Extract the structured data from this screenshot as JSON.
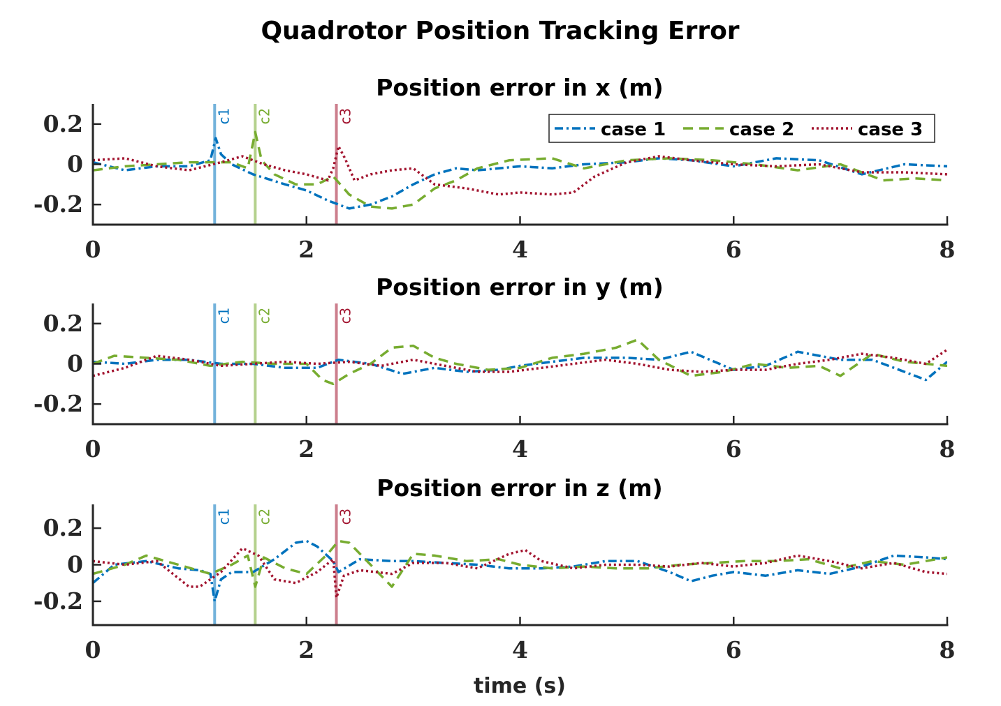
{
  "colors": {
    "case1": "#0072BD",
    "case2": "#77AC30",
    "case3": "#A2142F",
    "axis": "#262626"
  },
  "chart_data": {
    "type": "line",
    "title": "Quadrotor Position Tracking Error",
    "xlabel": "time (s)",
    "xlim": [
      0,
      8
    ],
    "xticks": [
      "0",
      "2",
      "4",
      "6",
      "8"
    ],
    "legend": {
      "placement": "top-right",
      "entries": [
        "case 1",
        "case 2",
        "case 3"
      ]
    },
    "markers": [
      {
        "label": "c1",
        "t": 1.14
      },
      {
        "label": "c2",
        "t": 1.52
      },
      {
        "label": "c3",
        "t": 2.28
      }
    ],
    "subplots": [
      {
        "title": "Position error in x (m)",
        "ylim": [
          -0.3,
          0.3
        ],
        "yticks": [
          "0.2",
          "0",
          "-0.2"
        ],
        "series": [
          {
            "name": "case 1",
            "t": [
              0,
              0.3,
              0.6,
              0.9,
              1.1,
              1.15,
              1.2,
              1.3,
              1.5,
              1.8,
              2.0,
              2.2,
              2.4,
              2.6,
              2.8,
              3.0,
              3.2,
              3.4,
              3.6,
              3.8,
              4.0,
              4.3,
              4.6,
              5.0,
              5.3,
              5.6,
              6.0,
              6.4,
              6.8,
              7.2,
              7.6,
              8.0
            ],
            "values": [
              0.01,
              -0.03,
              -0.01,
              -0.01,
              0.02,
              0.13,
              0.05,
              0.0,
              -0.05,
              -0.1,
              -0.13,
              -0.18,
              -0.22,
              -0.2,
              -0.16,
              -0.1,
              -0.05,
              -0.02,
              -0.03,
              -0.02,
              -0.01,
              -0.02,
              0.0,
              0.01,
              0.03,
              0.02,
              -0.01,
              0.03,
              0.02,
              -0.05,
              0.0,
              -0.01
            ]
          },
          {
            "name": "case 2",
            "t": [
              0,
              0.3,
              0.6,
              0.9,
              1.1,
              1.3,
              1.45,
              1.52,
              1.58,
              1.7,
              1.9,
              2.1,
              2.25,
              2.4,
              2.6,
              2.8,
              3.0,
              3.2,
              3.4,
              3.6,
              3.9,
              4.3,
              4.6,
              5.0,
              5.4,
              5.8,
              6.2,
              6.6,
              7.0,
              7.4,
              7.7,
              8.0
            ],
            "values": [
              -0.03,
              -0.01,
              0.0,
              0.01,
              0.01,
              0.01,
              -0.02,
              0.16,
              0.02,
              -0.05,
              -0.1,
              -0.1,
              -0.06,
              -0.15,
              -0.21,
              -0.22,
              -0.2,
              -0.12,
              -0.08,
              -0.02,
              0.02,
              0.03,
              -0.02,
              0.02,
              0.03,
              0.02,
              0.0,
              -0.03,
              0.0,
              -0.08,
              -0.07,
              -0.08
            ]
          },
          {
            "name": "case 3",
            "t": [
              0,
              0.3,
              0.6,
              0.9,
              1.2,
              1.4,
              1.6,
              1.8,
              2.0,
              2.2,
              2.25,
              2.3,
              2.36,
              2.45,
              2.6,
              2.8,
              3.0,
              3.2,
              3.5,
              3.8,
              4.0,
              4.3,
              4.5,
              4.7,
              5.0,
              5.3,
              5.6,
              6.0,
              6.4,
              6.8,
              7.2,
              7.6,
              8.0
            ],
            "values": [
              0.02,
              0.03,
              -0.01,
              -0.03,
              0.01,
              0.04,
              0.0,
              -0.03,
              -0.05,
              -0.08,
              -0.02,
              0.09,
              0.03,
              -0.08,
              -0.05,
              -0.03,
              -0.02,
              -0.1,
              -0.12,
              -0.15,
              -0.14,
              -0.15,
              -0.14,
              -0.06,
              0.01,
              0.04,
              0.02,
              0.0,
              -0.01,
              0.0,
              -0.04,
              -0.04,
              -0.05
            ]
          }
        ]
      },
      {
        "title": "Position error in y (m)",
        "ylim": [
          -0.3,
          0.3
        ],
        "yticks": [
          "0.2",
          "0",
          "-0.2"
        ],
        "series": [
          {
            "name": "case 1",
            "t": [
              0,
              0.3,
              0.6,
              0.9,
              1.2,
              1.5,
              1.8,
              2.1,
              2.3,
              2.6,
              2.9,
              3.2,
              3.5,
              3.8,
              4.0,
              4.3,
              4.6,
              5.0,
              5.3,
              5.6,
              6.0,
              6.3,
              6.6,
              7.0,
              7.3,
              7.6,
              7.8,
              8.0
            ],
            "values": [
              0.01,
              0.0,
              0.02,
              0.02,
              0.0,
              0.0,
              -0.02,
              -0.02,
              0.02,
              0.0,
              -0.05,
              -0.02,
              -0.04,
              -0.03,
              -0.01,
              0.01,
              0.03,
              0.03,
              0.02,
              0.06,
              -0.03,
              -0.01,
              0.06,
              0.02,
              0.02,
              -0.04,
              -0.08,
              0.01
            ]
          },
          {
            "name": "case 2",
            "t": [
              0,
              0.2,
              0.5,
              0.8,
              1.1,
              1.4,
              1.7,
              2.0,
              2.15,
              2.25,
              2.4,
              2.6,
              2.8,
              3.0,
              3.2,
              3.4,
              3.7,
              4.0,
              4.3,
              4.6,
              4.9,
              5.1,
              5.3,
              5.6,
              5.9,
              6.2,
              6.5,
              6.8,
              7.0,
              7.3,
              7.6,
              8.0
            ],
            "values": [
              0.0,
              0.04,
              0.03,
              0.02,
              -0.01,
              0.01,
              0.0,
              0.0,
              -0.08,
              -0.1,
              -0.05,
              0.0,
              0.08,
              0.09,
              0.03,
              0.0,
              -0.03,
              -0.02,
              0.03,
              0.05,
              0.08,
              0.12,
              0.02,
              -0.06,
              -0.04,
              0.0,
              -0.02,
              -0.01,
              -0.06,
              0.05,
              0.01,
              -0.01
            ]
          },
          {
            "name": "case 3",
            "t": [
              0,
              0.3,
              0.6,
              0.9,
              1.2,
              1.5,
              1.8,
              2.1,
              2.4,
              2.7,
              3.0,
              3.3,
              3.6,
              3.9,
              4.2,
              4.5,
              4.8,
              5.1,
              5.4,
              5.7,
              6.0,
              6.3,
              6.6,
              6.9,
              7.2,
              7.5,
              7.8,
              8.0
            ],
            "values": [
              -0.06,
              -0.02,
              0.04,
              0.02,
              -0.01,
              0.0,
              0.01,
              0.0,
              0.01,
              -0.01,
              0.02,
              -0.01,
              -0.04,
              -0.04,
              -0.02,
              0.0,
              0.02,
              0.0,
              -0.03,
              -0.04,
              -0.03,
              -0.03,
              0.0,
              0.02,
              0.05,
              0.03,
              0.0,
              0.07
            ]
          }
        ]
      },
      {
        "title": "Position error in z (m)",
        "ylim": [
          -0.33,
          0.33
        ],
        "yticks": [
          "0.2",
          "0",
          "-0.2"
        ],
        "series": [
          {
            "name": "case 1",
            "t": [
              0,
              0.2,
              0.5,
              0.8,
              1.0,
              1.1,
              1.14,
              1.2,
              1.3,
              1.5,
              1.7,
              1.9,
              2.0,
              2.1,
              2.25,
              2.3,
              2.5,
              2.8,
              3.0,
              3.3,
              3.6,
              3.9,
              4.2,
              4.5,
              4.8,
              5.1,
              5.4,
              5.6,
              5.8,
              6.0,
              6.3,
              6.6,
              6.9,
              7.2,
              7.5,
              7.8,
              8.0
            ],
            "values": [
              -0.1,
              0.0,
              0.02,
              -0.02,
              -0.03,
              -0.05,
              -0.2,
              -0.08,
              -0.04,
              -0.04,
              0.03,
              0.12,
              0.13,
              0.1,
              0.02,
              -0.04,
              0.03,
              0.02,
              0.02,
              0.01,
              0.0,
              -0.02,
              -0.02,
              -0.01,
              0.02,
              0.02,
              -0.04,
              -0.09,
              -0.06,
              -0.04,
              -0.06,
              -0.03,
              -0.05,
              -0.01,
              0.05,
              0.04,
              0.03
            ]
          },
          {
            "name": "case 2",
            "t": [
              0,
              0.3,
              0.5,
              0.8,
              1.1,
              1.3,
              1.45,
              1.52,
              1.6,
              1.8,
              2.0,
              2.2,
              2.3,
              2.4,
              2.6,
              2.8,
              3.0,
              3.2,
              3.5,
              3.8,
              4.0,
              4.3,
              4.6,
              4.9,
              5.2,
              5.5,
              5.8,
              6.1,
              6.4,
              6.7,
              7.0,
              7.3,
              7.6,
              8.0
            ],
            "values": [
              -0.05,
              0.0,
              0.05,
              0.0,
              -0.05,
              0.0,
              0.05,
              -0.12,
              0.04,
              -0.02,
              -0.05,
              0.06,
              0.13,
              0.12,
              0.0,
              -0.12,
              0.06,
              0.05,
              0.02,
              0.03,
              0.0,
              -0.02,
              -0.01,
              -0.02,
              -0.02,
              0.0,
              0.01,
              0.02,
              0.02,
              0.03,
              -0.02,
              0.02,
              0.0,
              0.04
            ]
          },
          {
            "name": "case 3",
            "t": [
              0,
              0.3,
              0.6,
              0.9,
              1.0,
              1.2,
              1.4,
              1.55,
              1.7,
              1.9,
              2.1,
              2.25,
              2.28,
              2.35,
              2.5,
              2.8,
              3.0,
              3.3,
              3.6,
              3.9,
              4.05,
              4.2,
              4.5,
              4.8,
              5.1,
              5.4,
              5.7,
              6.0,
              6.3,
              6.6,
              6.9,
              7.2,
              7.5,
              7.8,
              8.0
            ],
            "values": [
              0.02,
              0.0,
              0.02,
              -0.12,
              -0.12,
              -0.04,
              0.09,
              0.05,
              -0.08,
              -0.1,
              -0.04,
              0.03,
              -0.18,
              -0.06,
              -0.03,
              -0.05,
              0.01,
              0.01,
              -0.02,
              0.06,
              0.08,
              0.02,
              -0.02,
              0.0,
              0.0,
              -0.01,
              0.01,
              -0.01,
              0.01,
              0.05,
              0.02,
              -0.02,
              0.01,
              -0.04,
              -0.05
            ]
          }
        ]
      }
    ]
  }
}
